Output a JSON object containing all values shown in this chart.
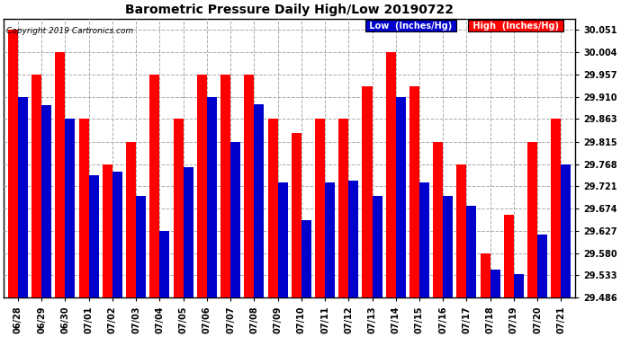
{
  "title": "Barometric Pressure Daily High/Low 20190722",
  "copyright": "Copyright 2019 Cartronics.com",
  "background_color": "#ffffff",
  "plot_bg_color": "#ffffff",
  "grid_color": "#aaaaaa",
  "bar_color_low": "#0000cc",
  "bar_color_high": "#ff0000",
  "legend_low": "Low  (Inches/Hg)",
  "legend_high": "High  (Inches/Hg)",
  "yticks": [
    29.486,
    29.533,
    29.58,
    29.627,
    29.674,
    29.721,
    29.768,
    29.815,
    29.863,
    29.91,
    29.957,
    30.004,
    30.051
  ],
  "ylim": [
    29.486,
    30.075
  ],
  "categories": [
    "06/28",
    "06/29",
    "06/30",
    "07/01",
    "07/02",
    "07/03",
    "07/04",
    "07/05",
    "07/06",
    "07/07",
    "07/08",
    "07/09",
    "07/10",
    "07/11",
    "07/12",
    "07/13",
    "07/14",
    "07/15",
    "07/16",
    "07/17",
    "07/18",
    "07/19",
    "07/20",
    "07/21"
  ],
  "low_values": [
    29.91,
    29.893,
    29.863,
    29.745,
    29.752,
    29.7,
    29.627,
    29.762,
    29.91,
    29.815,
    29.895,
    29.73,
    29.65,
    29.73,
    29.733,
    29.7,
    29.91,
    29.73,
    29.7,
    29.68,
    29.545,
    29.535,
    29.62,
    29.768
  ],
  "high_values": [
    30.051,
    29.957,
    30.004,
    29.863,
    29.768,
    29.815,
    29.957,
    29.863,
    29.957,
    29.957,
    29.957,
    29.863,
    29.833,
    29.863,
    29.863,
    29.933,
    30.004,
    29.933,
    29.815,
    29.768,
    29.58,
    29.66,
    29.815,
    29.863
  ],
  "title_fontsize": 10,
  "tick_fontsize": 7,
  "copyright_fontsize": 6.5
}
